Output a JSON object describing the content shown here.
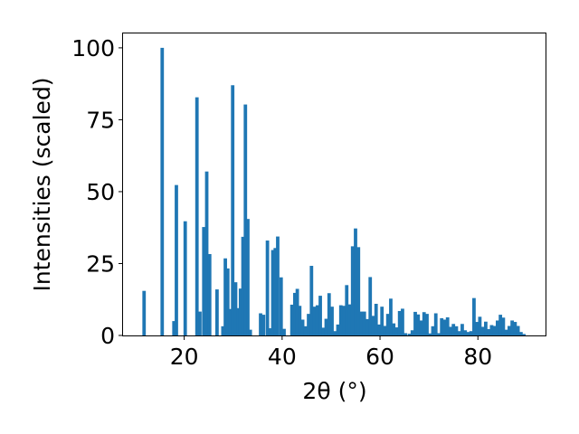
{
  "chart_data": {
    "type": "bar",
    "title": "",
    "xlabel": "2θ (°)",
    "ylabel": "Intensities (scaled)",
    "xlim": [
      7.5,
      94
    ],
    "ylim": [
      0,
      105
    ],
    "xticks": [
      20,
      40,
      60,
      80
    ],
    "yticks": [
      0,
      25,
      50,
      75,
      100
    ],
    "grid": false,
    "legend": "none",
    "bar_color": "#1f77b4",
    "bar_width_deg": 0.7,
    "x": [
      11.8,
      15.5,
      17.9,
      18.4,
      20.2,
      22.6,
      23.2,
      24.0,
      24.6,
      25.2,
      26.7,
      27.9,
      28.4,
      28.9,
      29.4,
      29.9,
      30.5,
      31.0,
      31.5,
      32.0,
      32.5,
      33.0,
      33.5,
      35.6,
      36.2,
      37.0,
      37.5,
      38.1,
      38.6,
      39.1,
      39.8,
      40.4,
      42.0,
      42.6,
      43.1,
      43.6,
      44.2,
      44.8,
      45.4,
      46.0,
      46.6,
      47.2,
      47.8,
      48.4,
      49.0,
      49.6,
      50.2,
      50.8,
      51.4,
      52.0,
      52.6,
      53.2,
      53.8,
      54.4,
      55.0,
      55.6,
      56.2,
      56.8,
      57.4,
      58.0,
      58.6,
      59.2,
      59.8,
      60.4,
      61.0,
      61.6,
      62.2,
      62.8,
      63.4,
      64.0,
      64.6,
      65.2,
      66.0,
      66.6,
      67.2,
      67.8,
      68.4,
      69.0,
      69.6,
      70.2,
      70.8,
      71.4,
      72.0,
      72.6,
      73.2,
      73.8,
      74.4,
      75.0,
      75.6,
      76.2,
      76.8,
      77.4,
      78.0,
      78.6,
      79.2,
      79.8,
      80.4,
      81.0,
      81.6,
      82.2,
      82.8,
      83.4,
      84.0,
      84.6,
      85.2,
      85.8,
      86.4,
      87.0,
      87.6,
      88.2,
      88.8,
      89.4
    ],
    "values": [
      15.5,
      100,
      5,
      52.3,
      39.7,
      82.8,
      8.3,
      37.7,
      57,
      28.3,
      16,
      3.2,
      26.8,
      23.3,
      9.2,
      87,
      18.5,
      9.5,
      16.3,
      34.3,
      80.3,
      40.5,
      2,
      7.7,
      7.2,
      33,
      2.5,
      29.7,
      30.4,
      34.4,
      20.2,
      2.3,
      10.7,
      14.8,
      16.2,
      10.3,
      5.5,
      3.2,
      7.5,
      24.2,
      10,
      10.5,
      13.8,
      2.7,
      5.8,
      14.7,
      10,
      1.5,
      3.8,
      10.5,
      10.3,
      17.5,
      10.8,
      31,
      37.2,
      30.7,
      8.3,
      8.3,
      5.7,
      20.3,
      6.8,
      11,
      3.8,
      10,
      3.3,
      7.5,
      12.8,
      4.2,
      2.8,
      8.5,
      9.3,
      0.8,
      0.6,
      1.8,
      8.2,
      7.3,
      5.2,
      8.1,
      7.5,
      0.7,
      3.2,
      7.7,
      0.8,
      6,
      5.5,
      6.3,
      3,
      4,
      3.2,
      1.5,
      4,
      1.8,
      1.2,
      1.5,
      13,
      4.7,
      6.5,
      3,
      4.8,
      2.2,
      3.6,
      3.3,
      5.2,
      7.2,
      6.2,
      2,
      3.3,
      5.2,
      4.7,
      3.3,
      1.2,
      0.5
    ]
  }
}
